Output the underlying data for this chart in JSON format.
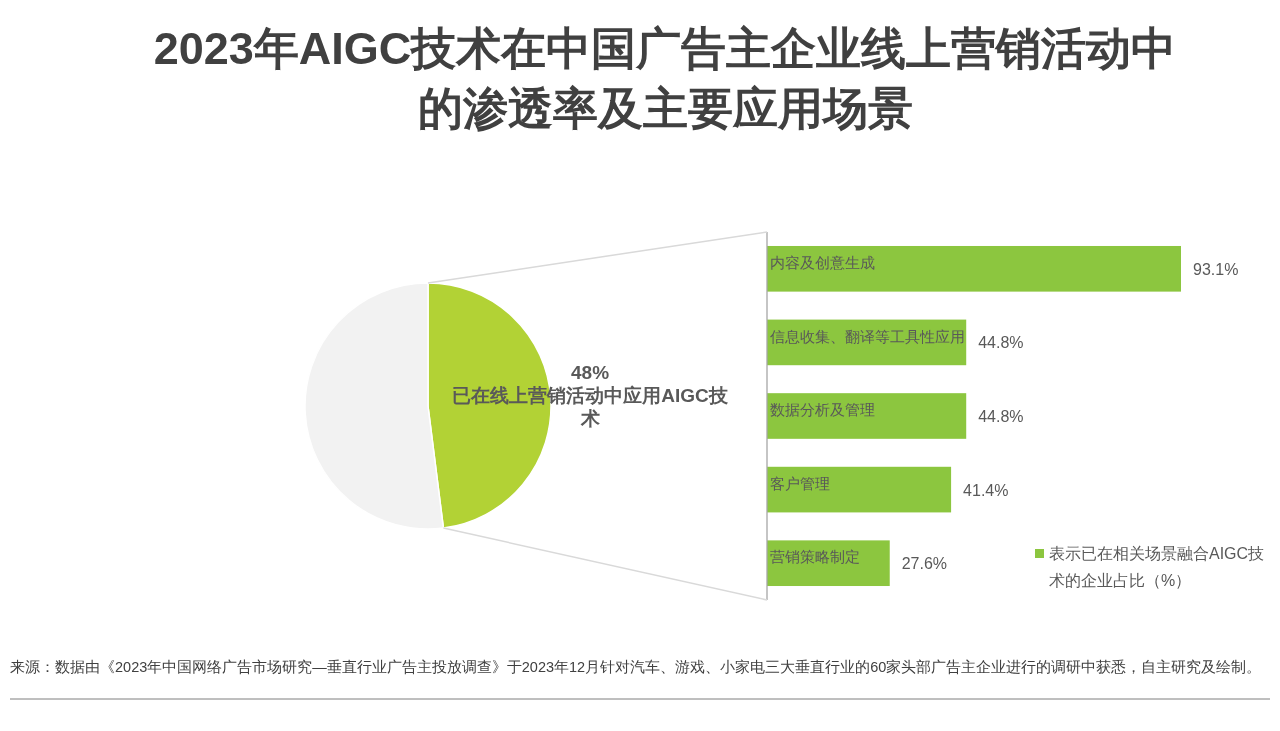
{
  "chart_data": [
    {
      "type": "pie",
      "title": "2023年AIGC技术在中国广告主企业线上营销活动中的渗透率及主要应用场景",
      "categories": [
        "已在线上营销活动中应用AIGC技术",
        null
      ],
      "values": [
        48,
        52
      ],
      "value_labels": [
        "48%",
        null
      ],
      "colors": [
        "#b2d235",
        "#f2f2f2"
      ]
    },
    {
      "type": "bar",
      "orientation": "horizontal",
      "categories": [
        "内容及创意生成",
        "信息收集、翻译等工具性应用",
        "数据分析及管理",
        "客户管理",
        "营销策略制定"
      ],
      "series": [
        {
          "name": "表示已在相关场景融合AIGC技术的企业占比（%）",
          "color": "#8cc63f",
          "values": [
            93.1,
            44.8,
            44.8,
            41.4,
            27.6
          ],
          "value_labels": [
            "93.1%",
            "44.8%",
            "44.8%",
            "41.4%",
            "27.6%"
          ]
        }
      ],
      "legend": "bottom right",
      "annotations": [
        "来源：数据由《2023年中国网络广告市场研究—垂直行业广告主投放调查》于2023年12月针对汽车、游戏、小家电三大垂直行业的60家头部广告主企业进行的调研中获悉，自主研究及绘制。"
      ]
    }
  ]
}
